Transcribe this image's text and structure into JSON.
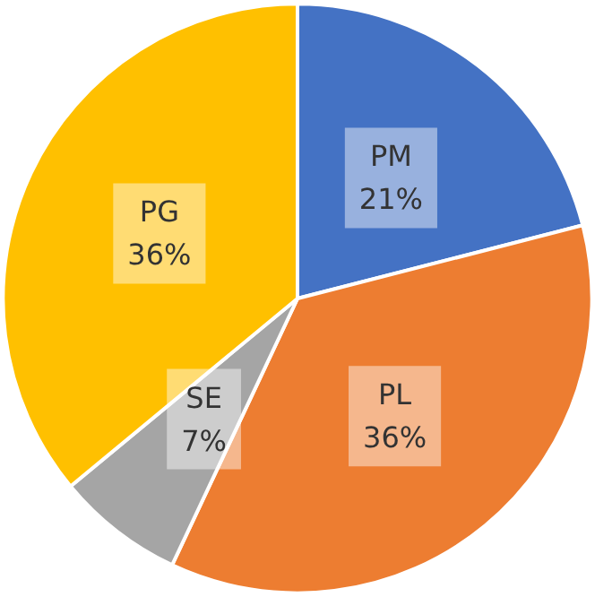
{
  "chart_data": {
    "type": "pie",
    "categories": [
      "PM",
      "PL",
      "SE",
      "PG"
    ],
    "values": [
      21,
      36,
      7,
      36
    ],
    "colors": [
      "#4472c4",
      "#ed7d31",
      "#a5a5a5",
      "#ffc000"
    ],
    "value_labels": [
      "21%",
      "36%",
      "7%",
      "36%"
    ]
  }
}
